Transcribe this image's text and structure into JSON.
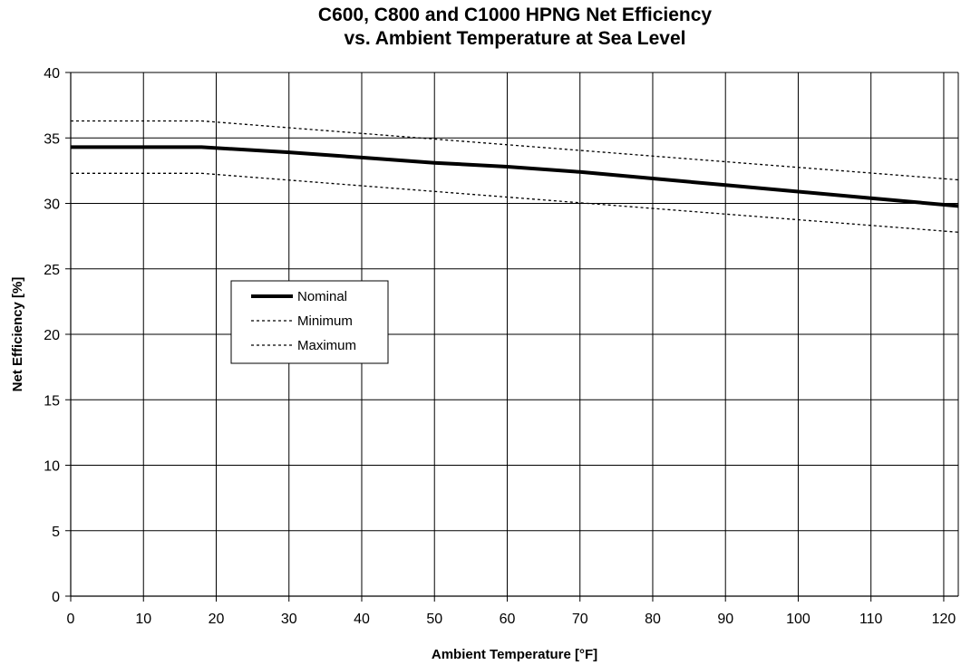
{
  "chart_data": {
    "type": "line",
    "title": [
      "C600, C800 and C1000 HPNG Net Efficiency",
      "vs. Ambient Temperature at Sea Level"
    ],
    "xlabel": "Ambient Temperature [°F]",
    "ylabel": "Net Efficiency [%]",
    "xlim": [
      0,
      122
    ],
    "ylim": [
      0,
      40
    ],
    "xticks": [
      0,
      10,
      20,
      30,
      40,
      50,
      60,
      70,
      80,
      90,
      100,
      110,
      120
    ],
    "yticks": [
      0,
      5,
      10,
      15,
      20,
      25,
      30,
      35,
      40
    ],
    "grid": true,
    "legend": {
      "position": "center-left",
      "boxed": true
    },
    "series": [
      {
        "name": "Nominal",
        "style": "solid-thick",
        "x": [
          0,
          18,
          30,
          40,
          50,
          60,
          70,
          80,
          90,
          100,
          110,
          122
        ],
        "y": [
          34.3,
          34.3,
          33.9,
          33.5,
          33.1,
          32.8,
          32.4,
          31.9,
          31.4,
          30.9,
          30.4,
          29.8
        ]
      },
      {
        "name": "Minimum",
        "style": "dotted",
        "x": [
          0,
          18,
          122
        ],
        "y": [
          32.3,
          32.3,
          27.8
        ]
      },
      {
        "name": "Maximum",
        "style": "dotted",
        "x": [
          0,
          18,
          122
        ],
        "y": [
          36.3,
          36.3,
          31.8
        ]
      }
    ]
  }
}
